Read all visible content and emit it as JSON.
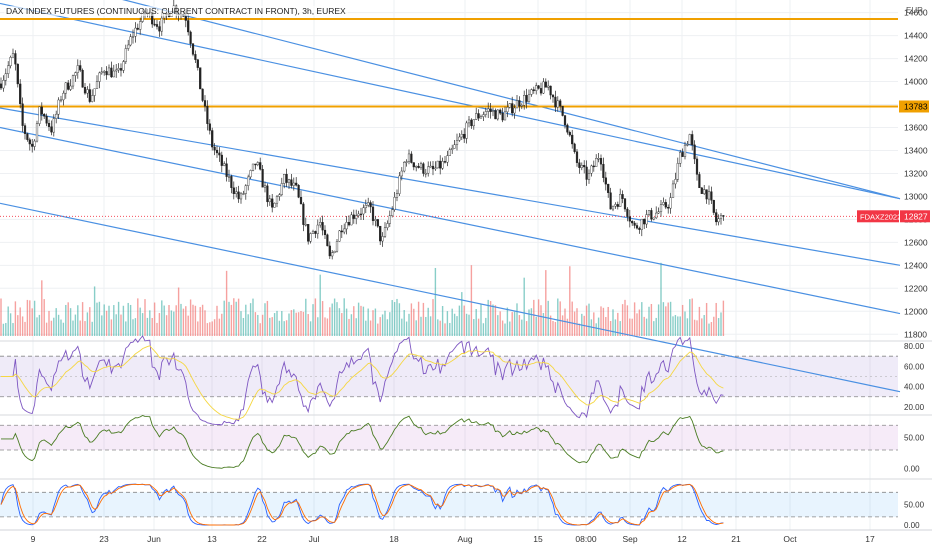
{
  "chart_data": {
    "type": "candlestick",
    "title": "DAX INDEX FUTURES (CONTINUOUS: CURRENT CONTRACT IN FRONT), 3h, EUREX",
    "currency": "EUR",
    "price_axis": {
      "ticks": [
        14600,
        14400,
        14200,
        14000,
        13800,
        13600,
        13400,
        13200,
        13000,
        12800,
        12600,
        12400,
        12200,
        12000,
        11800
      ],
      "range": [
        11750,
        14710
      ]
    },
    "time_axis": {
      "ticks": [
        "9",
        "23",
        "Jun",
        "13",
        "22",
        "Jul",
        "18",
        "Aug",
        "15",
        "08:00",
        "Sep",
        "12",
        "21",
        "Oct",
        "17"
      ]
    },
    "horizontal_levels": [
      {
        "price": 14545,
        "color": "#f0a000"
      },
      {
        "price": 13783,
        "color": "#f0a000",
        "label": "13783"
      }
    ],
    "current_price": {
      "symbol": "FDAXZ2022",
      "value": 12827,
      "color": "#f23645"
    },
    "price_path": [
      [
        0,
        13980
      ],
      [
        14,
        14240
      ],
      [
        22,
        13620
      ],
      [
        32,
        13420
      ],
      [
        40,
        13760
      ],
      [
        52,
        13580
      ],
      [
        62,
        13900
      ],
      [
        78,
        14100
      ],
      [
        90,
        13850
      ],
      [
        104,
        14120
      ],
      [
        118,
        14050
      ],
      [
        132,
        14400
      ],
      [
        146,
        14610
      ],
      [
        160,
        14480
      ],
      [
        172,
        14660
      ],
      [
        186,
        14560
      ],
      [
        196,
        14150
      ],
      [
        204,
        13780
      ],
      [
        212,
        13450
      ],
      [
        226,
        13200
      ],
      [
        240,
        12960
      ],
      [
        256,
        13300
      ],
      [
        272,
        12870
      ],
      [
        284,
        13150
      ],
      [
        296,
        13060
      ],
      [
        308,
        12640
      ],
      [
        320,
        12780
      ],
      [
        330,
        12450
      ],
      [
        342,
        12750
      ],
      [
        356,
        12860
      ],
      [
        370,
        12900
      ],
      [
        382,
        12600
      ],
      [
        394,
        12950
      ],
      [
        406,
        13350
      ],
      [
        420,
        13250
      ],
      [
        432,
        13220
      ],
      [
        446,
        13300
      ],
      [
        458,
        13480
      ],
      [
        474,
        13680
      ],
      [
        488,
        13750
      ],
      [
        502,
        13700
      ],
      [
        518,
        13820
      ],
      [
        530,
        13880
      ],
      [
        540,
        13930
      ],
      [
        548,
        13960
      ],
      [
        556,
        13820
      ],
      [
        566,
        13650
      ],
      [
        576,
        13300
      ],
      [
        588,
        13160
      ],
      [
        600,
        13380
      ],
      [
        610,
        12900
      ],
      [
        622,
        13000
      ],
      [
        634,
        12720
      ],
      [
        646,
        12820
      ],
      [
        658,
        12860
      ],
      [
        670,
        12950
      ],
      [
        680,
        13350
      ],
      [
        690,
        13540
      ],
      [
        698,
        13100
      ],
      [
        708,
        13020
      ],
      [
        716,
        12780
      ],
      [
        724,
        12827
      ]
    ],
    "channel_lines": [
      {
        "points": [
          [
            0,
            14680
          ],
          [
            900,
            12980
          ]
        ]
      },
      {
        "points": [
          [
            0,
            13770
          ],
          [
            900,
            12400
          ]
        ]
      },
      {
        "points": [
          [
            0,
            13600
          ],
          [
            900,
            11980
          ]
        ]
      },
      {
        "points": [
          [
            0,
            12940
          ],
          [
            900,
            11300
          ]
        ]
      },
      {
        "points": [
          [
            120,
            14720
          ],
          [
            900,
            12980
          ]
        ]
      }
    ],
    "rsi": {
      "ticks": [
        80.0,
        60.0,
        40.0,
        20.0
      ],
      "range": [
        15,
        84
      ],
      "upper_band": 70,
      "lower_band": 30,
      "last": 45
    },
    "oscillator2": {
      "ticks": [
        50.0,
        0.0
      ],
      "range": [
        -12,
        85
      ],
      "upper_band": 70,
      "lower_band": 30,
      "last": 45
    },
    "stochastic": {
      "ticks": [
        50.0,
        0.0
      ],
      "range": [
        -12,
        110
      ],
      "upper_band": 80,
      "lower_band": 20,
      "last": 20
    }
  }
}
